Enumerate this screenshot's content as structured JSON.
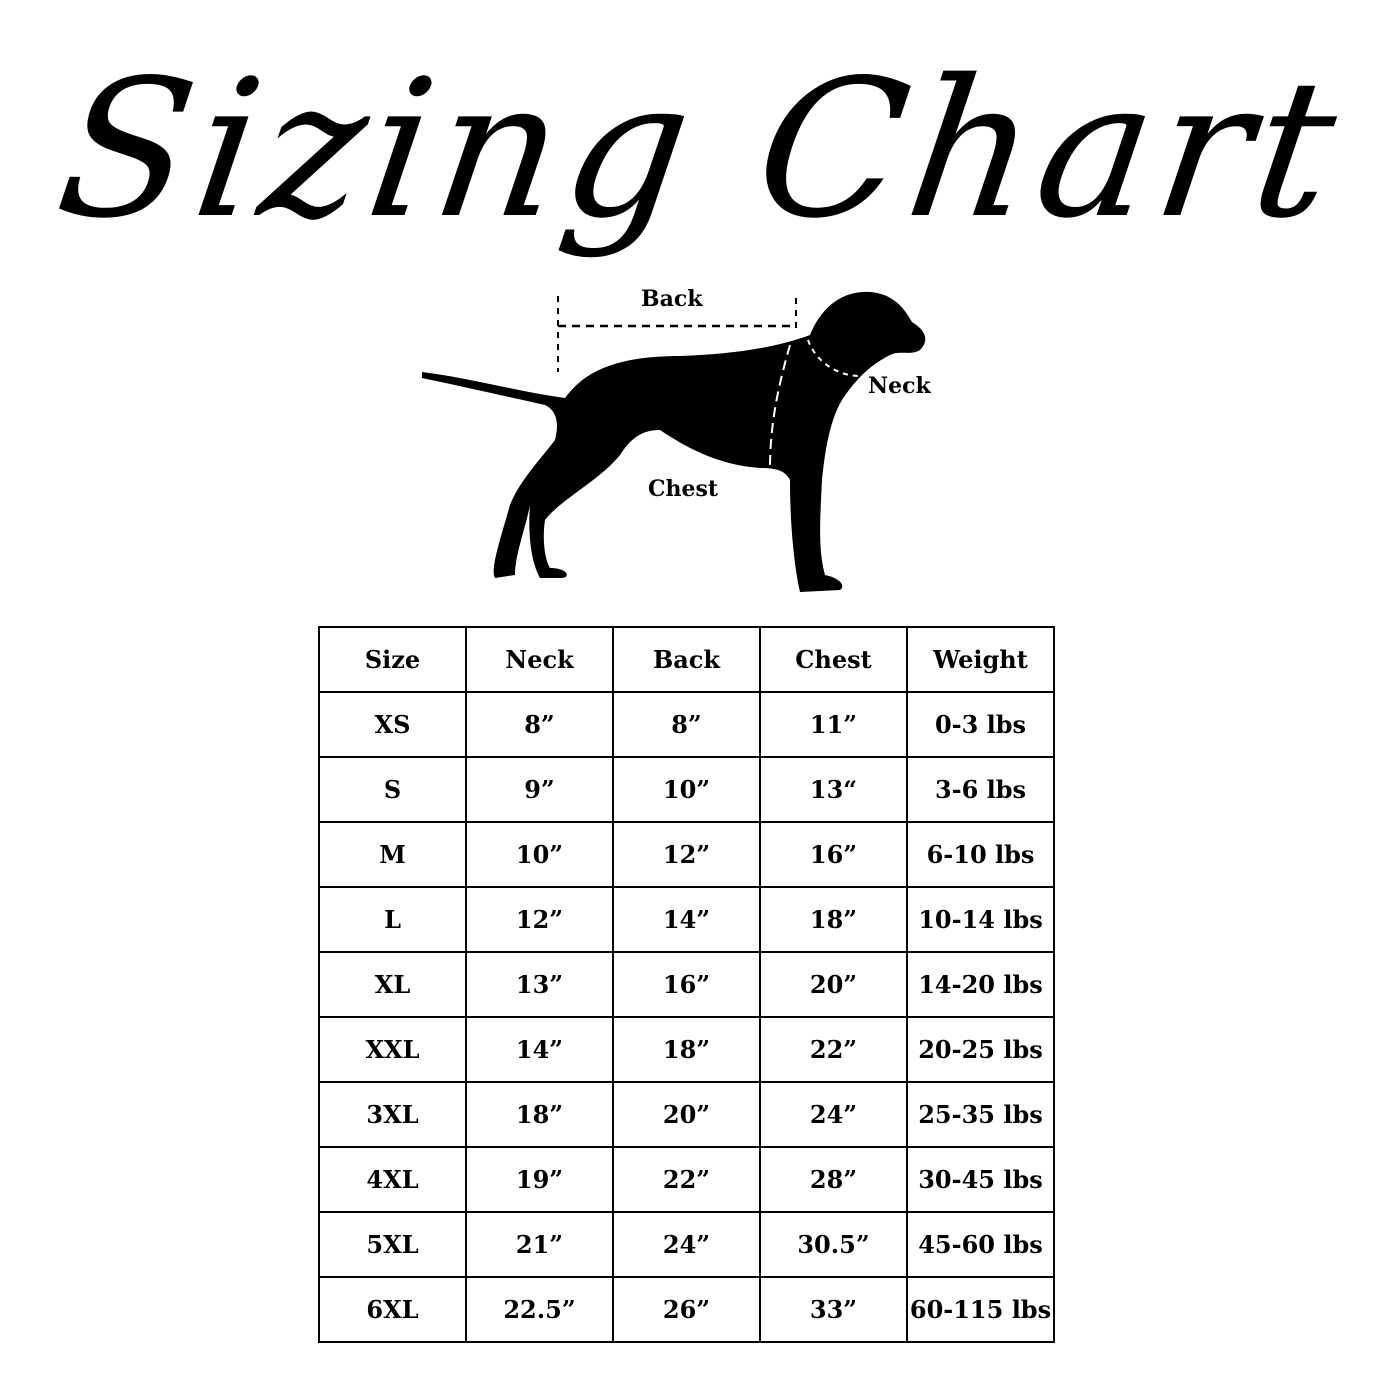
{
  "title": "Sizing Chart",
  "diagram": {
    "labels": {
      "back": "Back",
      "neck": "Neck",
      "chest": "Chest"
    }
  },
  "table": {
    "headers": [
      "Size",
      "Neck",
      "Back",
      "Chest",
      "Weight"
    ],
    "rows": [
      [
        "XS",
        "8”",
        "8”",
        "11”",
        "0-3 lbs"
      ],
      [
        "S",
        "9”",
        "10”",
        "13“",
        "3-6 lbs"
      ],
      [
        "M",
        "10”",
        "12”",
        "16”",
        "6-10 lbs"
      ],
      [
        "L",
        "12”",
        "14”",
        "18”",
        "10-14 lbs"
      ],
      [
        "XL",
        "13”",
        "16”",
        "20”",
        "14-20 lbs"
      ],
      [
        "XXL",
        "14”",
        "18”",
        "22”",
        "20-25 lbs"
      ],
      [
        "3XL",
        "18”",
        "20”",
        "24”",
        "25-35 lbs"
      ],
      [
        "4XL",
        "19”",
        "22”",
        "28”",
        "30-45 lbs"
      ],
      [
        "5XL",
        "21”",
        "24”",
        "30.5”",
        "45-60 lbs"
      ],
      [
        "6XL",
        "22.5”",
        "26”",
        "33”",
        "60-115 lbs"
      ]
    ]
  }
}
